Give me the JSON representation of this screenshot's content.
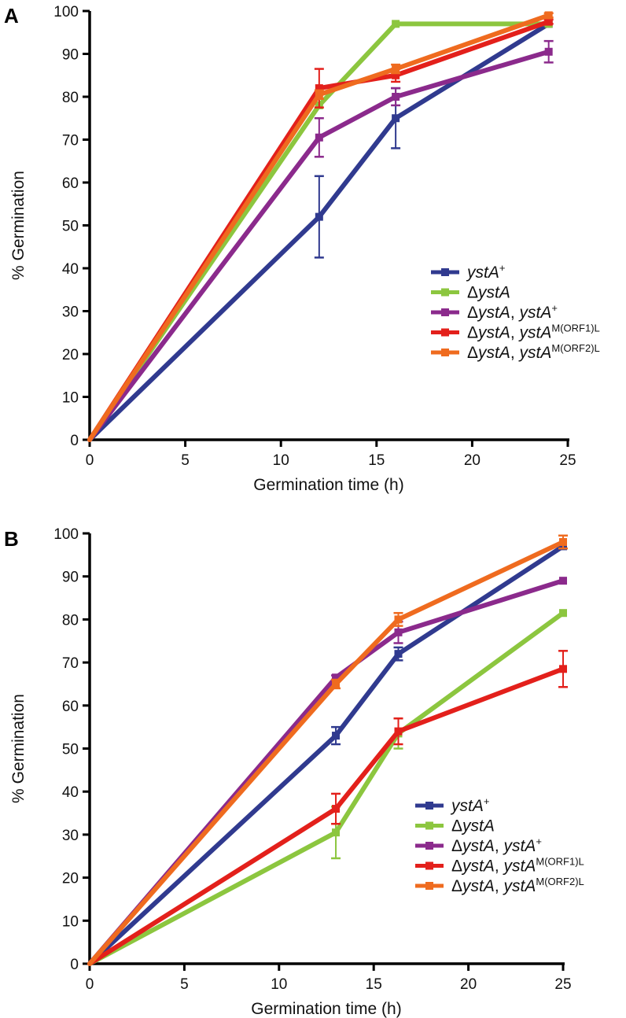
{
  "chart_data": [
    {
      "panel": "A",
      "type": "line",
      "xlabel": "Germination time (h)",
      "ylabel": "% Germination",
      "xlim": [
        0,
        25
      ],
      "ylim": [
        0,
        100
      ],
      "xticks": [
        0,
        5,
        10,
        15,
        20,
        25
      ],
      "yticks": [
        0,
        10,
        20,
        30,
        40,
        50,
        60,
        70,
        80,
        90,
        100
      ],
      "legend_position": "center-right",
      "series": [
        {
          "name": "ystA+",
          "color": "#303a8f",
          "x": [
            0,
            12,
            16,
            24
          ],
          "y": [
            0,
            52,
            75,
            97
          ],
          "err": [
            0,
            9.5,
            7,
            0
          ]
        },
        {
          "name": "ΔystA",
          "color": "#8cc63f",
          "x": [
            0,
            12,
            16,
            24
          ],
          "y": [
            0,
            78,
            97,
            97
          ],
          "err": [
            0,
            0,
            0,
            0
          ]
        },
        {
          "name": "ΔystA, ystA+",
          "color": "#8b2a8c",
          "x": [
            0,
            12,
            16,
            24
          ],
          "y": [
            0,
            70.5,
            80,
            90.5
          ],
          "err": [
            0,
            4.5,
            2,
            2.5
          ]
        },
        {
          "name": "ΔystA, ystAM(ORF1)L",
          "color": "#e3201b",
          "x": [
            0,
            12,
            16,
            24
          ],
          "y": [
            0,
            82,
            85,
            97.5
          ],
          "err": [
            0,
            4.5,
            1.5,
            0.5
          ]
        },
        {
          "name": "ΔystA, ystAM(ORF2)L",
          "color": "#ef6b1f",
          "x": [
            0,
            12,
            16,
            24
          ],
          "y": [
            0,
            80.5,
            86.5,
            99
          ],
          "err": [
            0,
            1,
            1,
            0.5
          ]
        }
      ]
    },
    {
      "panel": "B",
      "type": "line",
      "xlabel": "Germination time (h)",
      "ylabel": "% Germination",
      "xlim": [
        0,
        25
      ],
      "ylim": [
        0,
        100
      ],
      "xticks": [
        0,
        5,
        10,
        15,
        20,
        25
      ],
      "yticks": [
        0,
        10,
        20,
        30,
        40,
        50,
        60,
        70,
        80,
        90,
        100
      ],
      "legend_position": "lower-right",
      "series": [
        {
          "name": "ystA+",
          "color": "#303a8f",
          "x": [
            0,
            13,
            16.3,
            25
          ],
          "y": [
            0,
            53,
            72,
            97
          ],
          "err": [
            0,
            2,
            1.5,
            0
          ]
        },
        {
          "name": "ΔystA",
          "color": "#8cc63f",
          "x": [
            0,
            13,
            16.3,
            25
          ],
          "y": [
            0,
            30.5,
            53.5,
            81.5
          ],
          "err": [
            0,
            6,
            3.5,
            0
          ]
        },
        {
          "name": "ΔystA, ystA+",
          "color": "#8b2a8c",
          "x": [
            0,
            13,
            16.3,
            25
          ],
          "y": [
            0,
            66.5,
            77,
            89
          ],
          "err": [
            0,
            0.5,
            2.5,
            0
          ]
        },
        {
          "name": "ΔystA, ystAM(ORF1)L",
          "color": "#e3201b",
          "x": [
            0,
            13,
            16.3,
            25
          ],
          "y": [
            0,
            36,
            54,
            68.5
          ],
          "err": [
            0,
            3.5,
            3,
            4.2
          ]
        },
        {
          "name": "ΔystA, ystAM(ORF2)L",
          "color": "#ef6b1f",
          "x": [
            0,
            13,
            16.3,
            25
          ],
          "y": [
            0,
            65,
            80,
            98
          ],
          "err": [
            0,
            1,
            1.5,
            1.5
          ]
        }
      ]
    }
  ]
}
